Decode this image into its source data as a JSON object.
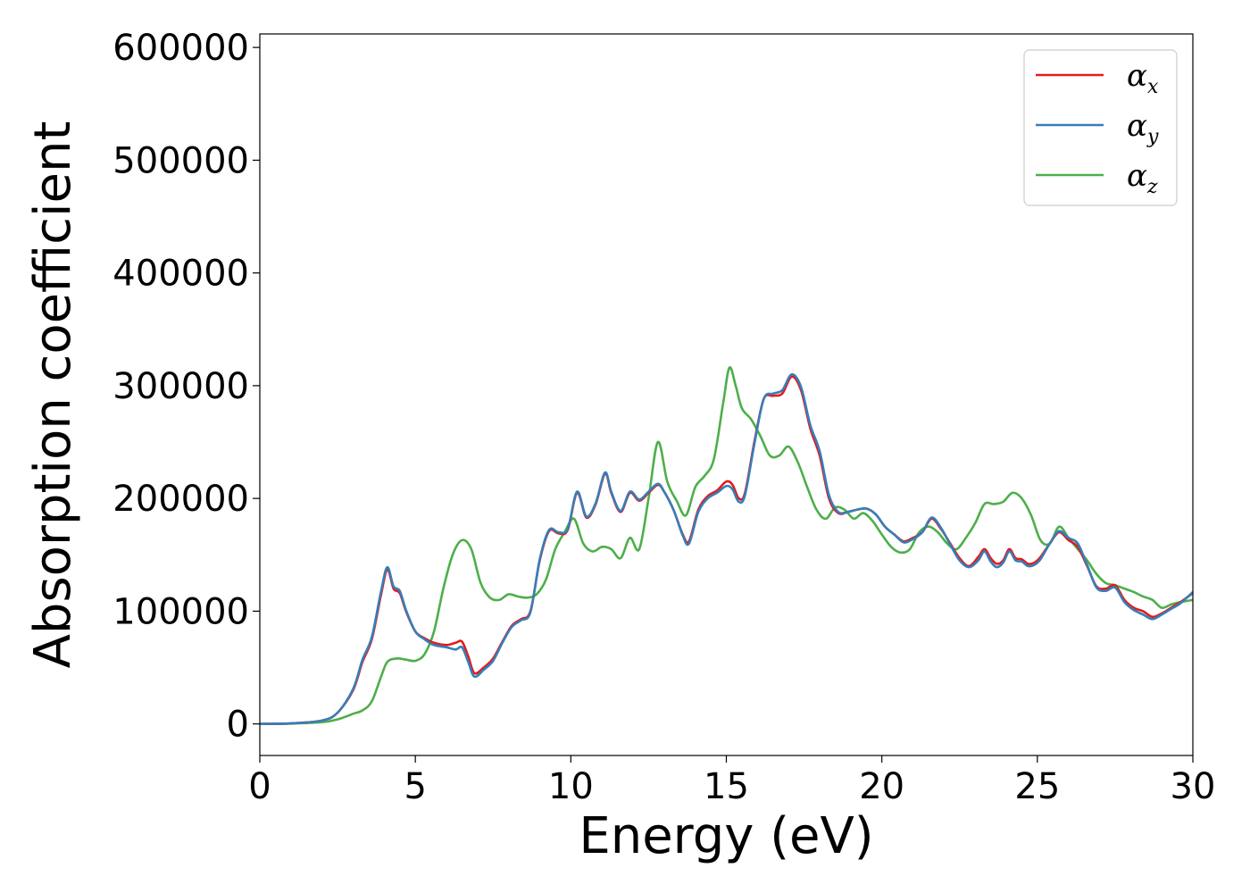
{
  "chart_data": {
    "type": "line",
    "title": "",
    "xlabel": "Energy (eV)",
    "ylabel": "Absorption coefficient",
    "xlim": [
      0,
      30
    ],
    "ylim": [
      -28000,
      612000
    ],
    "xticks": [
      0,
      5,
      10,
      15,
      20,
      25,
      30
    ],
    "xtick_labels": [
      "0",
      "5",
      "10",
      "15",
      "20",
      "25",
      "30"
    ],
    "yticks": [
      0,
      100000,
      200000,
      300000,
      400000,
      500000,
      600000
    ],
    "ytick_labels": [
      "0",
      "100000",
      "200000",
      "300000",
      "400000",
      "500000",
      "600000"
    ],
    "grid": false,
    "legend_position": "top-right",
    "series": [
      {
        "name": "α_x",
        "label_main": "α",
        "label_sub": "x",
        "color": "#e41a1c",
        "x": [
          0,
          1,
          2,
          2.5,
          3,
          3.3,
          3.6,
          3.9,
          4.1,
          4.3,
          4.5,
          4.7,
          5.0,
          5.3,
          5.6,
          6.0,
          6.3,
          6.5,
          6.7,
          6.9,
          7.2,
          7.5,
          7.8,
          8.1,
          8.4,
          8.7,
          9.0,
          9.3,
          9.6,
          9.9,
          10.2,
          10.5,
          10.8,
          11.1,
          11.3,
          11.6,
          11.9,
          12.2,
          12.5,
          12.8,
          13.0,
          13.3,
          13.6,
          13.8,
          14.1,
          14.4,
          14.7,
          15.0,
          15.2,
          15.4,
          15.6,
          15.9,
          16.2,
          16.5,
          16.8,
          17.1,
          17.4,
          17.7,
          18.0,
          18.3,
          18.6,
          18.9,
          19.2,
          19.5,
          19.8,
          20.1,
          20.4,
          20.7,
          21.0,
          21.3,
          21.6,
          21.9,
          22.2,
          22.5,
          22.8,
          23.1,
          23.3,
          23.5,
          23.7,
          23.9,
          24.1,
          24.3,
          24.5,
          24.7,
          24.9,
          25.1,
          25.4,
          25.7,
          26.0,
          26.3,
          26.6,
          26.9,
          27.2,
          27.5,
          27.8,
          28.1,
          28.4,
          28.7,
          29.0,
          29.3,
          29.6,
          30.0
        ],
        "y": [
          0,
          500,
          3000,
          10000,
          30000,
          55000,
          75000,
          115000,
          137000,
          120000,
          116000,
          100000,
          82000,
          76000,
          72000,
          70000,
          72000,
          73000,
          60000,
          45000,
          50000,
          58000,
          73000,
          87000,
          93000,
          100000,
          145000,
          171000,
          169000,
          172000,
          205000,
          183000,
          195000,
          222000,
          205000,
          188000,
          205000,
          198000,
          205000,
          212000,
          206000,
          190000,
          168000,
          162000,
          190000,
          202000,
          207000,
          215000,
          212000,
          200000,
          205000,
          250000,
          288000,
          291000,
          293000,
          308000,
          296000,
          262000,
          238000,
          200000,
          187000,
          188000,
          190000,
          191000,
          186000,
          175000,
          168000,
          162000,
          165000,
          170000,
          182000,
          173000,
          160000,
          147000,
          140000,
          148000,
          155000,
          147000,
          142000,
          145000,
          155000,
          147000,
          146000,
          142000,
          143000,
          148000,
          160000,
          170000,
          163000,
          157000,
          140000,
          122000,
          120000,
          123000,
          110000,
          103000,
          100000,
          95000,
          98000,
          103000,
          108000,
          116000
        ]
      },
      {
        "name": "α_y",
        "label_main": "α",
        "label_sub": "y",
        "color": "#377eb8",
        "x": [
          0,
          1,
          2,
          2.5,
          3,
          3.3,
          3.6,
          3.9,
          4.1,
          4.3,
          4.5,
          4.7,
          5.0,
          5.3,
          5.6,
          6.0,
          6.3,
          6.5,
          6.7,
          6.9,
          7.2,
          7.5,
          7.8,
          8.1,
          8.4,
          8.7,
          9.0,
          9.3,
          9.6,
          9.9,
          10.2,
          10.5,
          10.8,
          11.1,
          11.3,
          11.6,
          11.9,
          12.2,
          12.5,
          12.8,
          13.0,
          13.3,
          13.6,
          13.8,
          14.1,
          14.4,
          14.7,
          15.0,
          15.2,
          15.4,
          15.6,
          15.9,
          16.2,
          16.5,
          16.8,
          17.1,
          17.4,
          17.7,
          18.0,
          18.3,
          18.6,
          18.9,
          19.2,
          19.5,
          19.8,
          20.1,
          20.4,
          20.7,
          21.0,
          21.3,
          21.6,
          21.9,
          22.2,
          22.5,
          22.8,
          23.1,
          23.3,
          23.5,
          23.7,
          23.9,
          24.1,
          24.3,
          24.5,
          24.7,
          24.9,
          25.1,
          25.4,
          25.7,
          26.0,
          26.3,
          26.6,
          26.9,
          27.2,
          27.5,
          27.8,
          28.1,
          28.4,
          28.7,
          29.0,
          29.3,
          29.6,
          30.0
        ],
        "y": [
          0,
          500,
          3000,
          10000,
          31000,
          57000,
          77000,
          118000,
          139000,
          122000,
          118000,
          101000,
          82000,
          75000,
          70000,
          68000,
          66000,
          68000,
          55000,
          42000,
          48000,
          56000,
          72000,
          86000,
          92000,
          99000,
          146000,
          172000,
          170000,
          173000,
          206000,
          184000,
          196000,
          223000,
          206000,
          189000,
          206000,
          199000,
          206000,
          213000,
          206000,
          190000,
          167000,
          160000,
          188000,
          200000,
          205000,
          211000,
          208000,
          197000,
          203000,
          248000,
          288000,
          293000,
          296000,
          310000,
          299000,
          265000,
          242000,
          203000,
          188000,
          188000,
          190000,
          191000,
          186000,
          175000,
          168000,
          161000,
          164000,
          170000,
          183000,
          174000,
          159000,
          145000,
          139000,
          145000,
          153000,
          144000,
          139000,
          143000,
          153000,
          145000,
          144000,
          140000,
          141000,
          146000,
          160000,
          171000,
          165000,
          160000,
          141000,
          121000,
          118000,
          121000,
          108000,
          101000,
          97000,
          93000,
          97000,
          102000,
          107000,
          117000
        ]
      },
      {
        "name": "α_z",
        "label_main": "α",
        "label_sub": "z",
        "color": "#4daf4a",
        "x": [
          0,
          1,
          2,
          2.5,
          3,
          3.3,
          3.6,
          3.9,
          4.1,
          4.4,
          4.7,
          5.0,
          5.3,
          5.6,
          5.9,
          6.2,
          6.5,
          6.8,
          7.1,
          7.4,
          7.7,
          8.0,
          8.3,
          8.6,
          8.9,
          9.2,
          9.5,
          9.8,
          10.1,
          10.4,
          10.7,
          11.0,
          11.3,
          11.6,
          11.9,
          12.2,
          12.5,
          12.8,
          13.1,
          13.4,
          13.7,
          14.0,
          14.3,
          14.6,
          14.9,
          15.1,
          15.3,
          15.5,
          15.8,
          16.1,
          16.4,
          16.7,
          17.0,
          17.3,
          17.6,
          17.9,
          18.2,
          18.5,
          18.8,
          19.1,
          19.4,
          19.7,
          20.0,
          20.3,
          20.6,
          20.9,
          21.2,
          21.5,
          21.8,
          22.1,
          22.4,
          22.7,
          23.0,
          23.3,
          23.6,
          23.9,
          24.2,
          24.5,
          24.8,
          25.1,
          25.4,
          25.7,
          26.0,
          26.3,
          26.6,
          26.9,
          27.2,
          27.5,
          27.8,
          28.1,
          28.4,
          28.7,
          29.0,
          29.3,
          29.6,
          30.0
        ],
        "y": [
          0,
          300,
          1500,
          4000,
          9000,
          12000,
          20000,
          42000,
          55000,
          58000,
          57000,
          56000,
          62000,
          82000,
          120000,
          150000,
          163000,
          155000,
          125000,
          112000,
          110000,
          115000,
          113000,
          112000,
          115000,
          128000,
          155000,
          170000,
          182000,
          160000,
          153000,
          157000,
          155000,
          147000,
          165000,
          155000,
          200000,
          250000,
          215000,
          198000,
          185000,
          210000,
          220000,
          235000,
          285000,
          316000,
          300000,
          280000,
          270000,
          255000,
          238000,
          238000,
          246000,
          232000,
          210000,
          190000,
          182000,
          192000,
          190000,
          182000,
          187000,
          180000,
          168000,
          157000,
          152000,
          155000,
          170000,
          175000,
          170000,
          160000,
          155000,
          165000,
          178000,
          195000,
          195000,
          197000,
          205000,
          200000,
          185000,
          163000,
          160000,
          175000,
          165000,
          155000,
          145000,
          133000,
          125000,
          123000,
          120000,
          117000,
          113000,
          110000,
          103000,
          106000,
          108000,
          110000
        ]
      }
    ]
  }
}
